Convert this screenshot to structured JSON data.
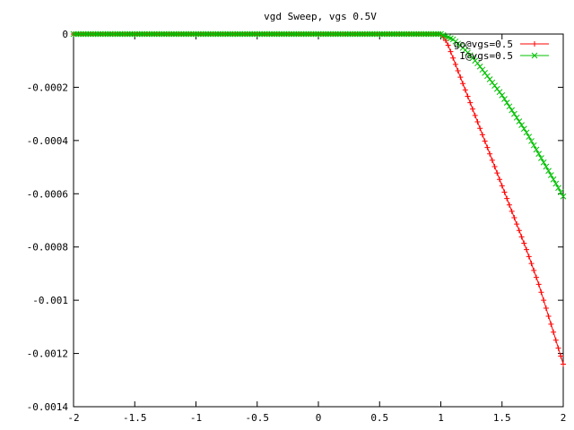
{
  "chart_data": {
    "type": "line",
    "title": "vgd Sweep, vgs 0.5V",
    "xlabel": "",
    "ylabel": "",
    "xlim": [
      -2,
      2
    ],
    "ylim": [
      -0.0014,
      0
    ],
    "x_ticks": [
      -2,
      -1.5,
      -1,
      -0.5,
      0,
      0.5,
      1,
      1.5,
      2
    ],
    "x_tick_labels": [
      "-2",
      "-1.5",
      "-1",
      "-0.5",
      "0",
      "0.5",
      "1",
      "1.5",
      "2"
    ],
    "y_ticks": [
      0,
      -0.0002,
      -0.0004,
      -0.0006,
      -0.0008,
      -0.001,
      -0.0012,
      -0.0014
    ],
    "y_tick_labels": [
      "0",
      "-0.0002",
      "-0.0004",
      "-0.0006",
      "-0.0008",
      "-0.001",
      "-0.0012",
      "-0.0014"
    ],
    "grid": false,
    "legend_position": "top-right",
    "series": [
      {
        "name": "go@vgs=0.5",
        "color": "#ff0000",
        "marker": "plus",
        "x": [
          -2,
          -1.5,
          -1,
          -0.5,
          0,
          0.5,
          0.9,
          1.0,
          1.05,
          1.1,
          1.2,
          1.3,
          1.4,
          1.5,
          1.6,
          1.7,
          1.8,
          1.9,
          2.0
        ],
        "y": [
          0,
          0,
          0,
          0,
          0,
          0,
          0,
          0,
          -3e-05,
          -9e-05,
          -0.00021,
          -0.00033,
          -0.00045,
          -0.00057,
          -0.00069,
          -0.00081,
          -0.00094,
          -0.00109,
          -0.00124
        ]
      },
      {
        "name": "I@vgs=0.5",
        "color": "#00c000",
        "marker": "cross",
        "x": [
          -2,
          -1.5,
          -1,
          -0.5,
          0,
          0.5,
          0.9,
          1.0,
          1.05,
          1.1,
          1.2,
          1.3,
          1.4,
          1.5,
          1.6,
          1.7,
          1.8,
          1.9,
          2.0
        ],
        "y": [
          0,
          0,
          0,
          0,
          0,
          0,
          0,
          0,
          -1e-05,
          -2e-05,
          -6e-05,
          -0.00011,
          -0.00017,
          -0.00023,
          -0.0003,
          -0.00037,
          -0.00045,
          -0.00053,
          -0.00061
        ]
      }
    ]
  }
}
